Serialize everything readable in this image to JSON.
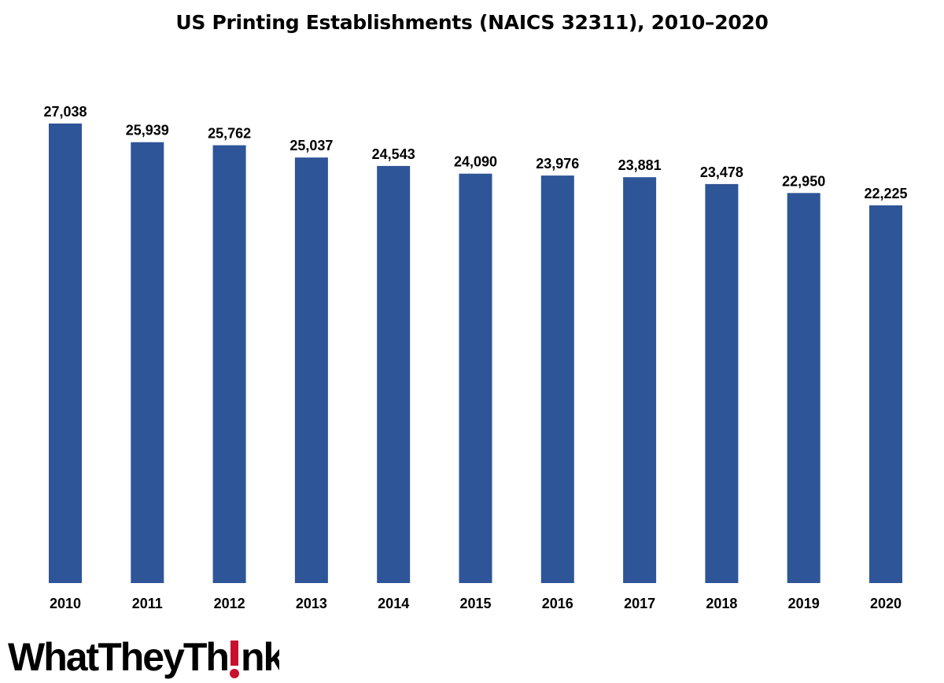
{
  "chart_data": {
    "type": "bar",
    "title": "US Printing Establishments (NAICS 32311), 2010–2020",
    "categories": [
      "2010",
      "2011",
      "2012",
      "2013",
      "2014",
      "2015",
      "2016",
      "2017",
      "2018",
      "2019",
      "2020"
    ],
    "values": [
      27038,
      25939,
      25762,
      25037,
      24543,
      24090,
      23976,
      23881,
      23478,
      22950,
      22225
    ],
    "value_labels": [
      "27,038",
      "25,939",
      "25,762",
      "25,037",
      "24,543",
      "24,090",
      "23,976",
      "23,881",
      "23,478",
      "22,950",
      "22,225"
    ],
    "xlabel": "",
    "ylabel": "",
    "ylim": [
      0,
      27038
    ],
    "grid": false,
    "legend": "none",
    "bar_color": "#2e5597",
    "text_color": "#000000"
  },
  "logo": {
    "text": "WhatTheyThink",
    "accent_color": "#c8102e"
  }
}
